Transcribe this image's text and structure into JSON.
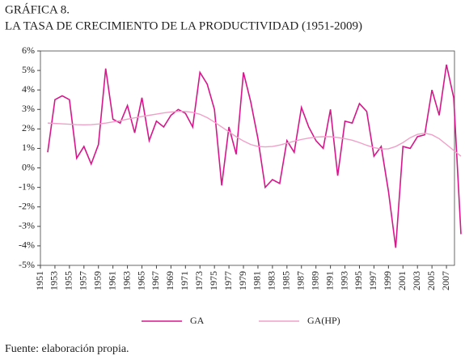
{
  "chart_data": {
    "type": "line",
    "title": "GRÁFICA 8.",
    "subtitle": "LA TASA DE CRECIMIENTO DE LA PRODUCTIVIDAD (1951-2009)",
    "source": "Fuente: elaboración propia.",
    "x": [
      1952,
      1953,
      1954,
      1955,
      1956,
      1957,
      1958,
      1959,
      1960,
      1961,
      1962,
      1963,
      1964,
      1965,
      1966,
      1967,
      1968,
      1969,
      1970,
      1971,
      1972,
      1973,
      1974,
      1975,
      1976,
      1977,
      1978,
      1979,
      1980,
      1981,
      1982,
      1983,
      1984,
      1985,
      1986,
      1987,
      1988,
      1989,
      1990,
      1991,
      1992,
      1993,
      1994,
      1995,
      1996,
      1997,
      1998,
      1999,
      2000,
      2001,
      2002,
      2003,
      2004,
      2005,
      2006,
      2007,
      2008,
      2009
    ],
    "series": [
      {
        "name": "GA",
        "color": "#d6168b",
        "values": [
          0.8,
          3.5,
          3.7,
          3.5,
          0.5,
          1.1,
          0.2,
          1.2,
          5.1,
          2.5,
          2.3,
          3.2,
          1.8,
          3.6,
          1.4,
          2.4,
          2.1,
          2.7,
          3.0,
          2.8,
          2.1,
          4.9,
          4.3,
          3.0,
          -0.9,
          2.1,
          0.7,
          4.9,
          3.4,
          1.5,
          -1.0,
          -0.6,
          -0.8,
          1.4,
          0.8,
          3.1,
          2.1,
          1.4,
          1.0,
          3.0,
          -0.4,
          2.4,
          2.3,
          3.3,
          2.9,
          0.6,
          1.1,
          -1.2,
          -4.1,
          1.1,
          1.0,
          1.6,
          1.7,
          4.0,
          2.7,
          5.3,
          3.6,
          -3.4
        ]
      },
      {
        "name": "GA(HP)",
        "color": "#f0a0c8",
        "values": [
          2.3,
          2.28,
          2.26,
          2.24,
          2.22,
          2.21,
          2.22,
          2.25,
          2.3,
          2.36,
          2.42,
          2.5,
          2.57,
          2.64,
          2.7,
          2.76,
          2.82,
          2.87,
          2.9,
          2.9,
          2.85,
          2.75,
          2.58,
          2.35,
          2.1,
          1.85,
          1.6,
          1.38,
          1.2,
          1.1,
          1.08,
          1.1,
          1.17,
          1.27,
          1.37,
          1.46,
          1.53,
          1.58,
          1.6,
          1.6,
          1.56,
          1.5,
          1.42,
          1.3,
          1.16,
          1.04,
          0.97,
          0.98,
          1.1,
          1.3,
          1.55,
          1.72,
          1.78,
          1.7,
          1.5,
          1.2,
          0.9,
          0.6
        ]
      }
    ],
    "xlim": [
      1951,
      2009
    ],
    "xticks": [
      1951,
      1953,
      1955,
      1957,
      1959,
      1961,
      1963,
      1965,
      1967,
      1969,
      1971,
      1973,
      1975,
      1977,
      1979,
      1981,
      1983,
      1985,
      1987,
      1989,
      1991,
      1993,
      1995,
      1997,
      1999,
      2001,
      2003,
      2005,
      2007
    ],
    "ylim": [
      -5,
      6
    ],
    "yticks": [
      {
        "value": -5,
        "label": "-5%"
      },
      {
        "value": -4,
        "label": "-4%"
      },
      {
        "value": -3,
        "label": "-3%"
      },
      {
        "value": -2,
        "label": "-2%"
      },
      {
        "value": -1,
        "label": "-1%"
      },
      {
        "value": 0,
        "label": "0%"
      },
      {
        "value": 1,
        "label": "1%"
      },
      {
        "value": 2,
        "label": "2%"
      },
      {
        "value": 3,
        "label": "3%"
      },
      {
        "value": 4,
        "label": "4%"
      },
      {
        "value": 5,
        "label": "5%"
      },
      {
        "value": 6,
        "label": "6%"
      }
    ],
    "legend": "bottom"
  }
}
